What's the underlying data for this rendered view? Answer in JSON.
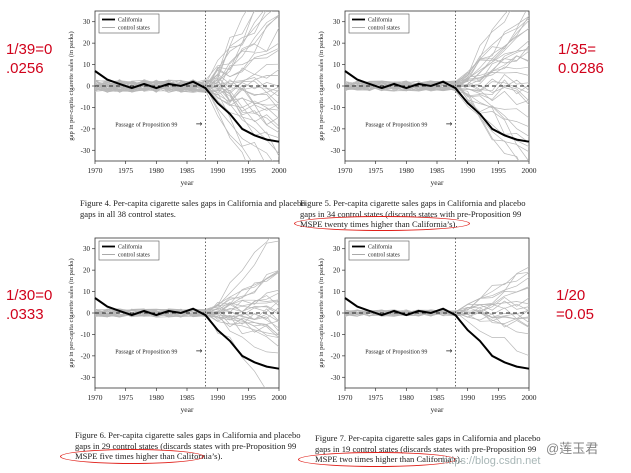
{
  "annotations": [
    {
      "line1": "1/39=0",
      "line2": ".0256"
    },
    {
      "line1": "1/35=",
      "line2": "0.0286"
    },
    {
      "line1": "1/30=0",
      "line2": ".0333"
    },
    {
      "line1": "1/20",
      "line2": "=0.05"
    }
  ],
  "captions": [
    {
      "line1": "Figure 4.  Per-capita cigarette sales gaps in California and placebo",
      "line2": "gaps in all 38 control states.",
      "line3": ""
    },
    {
      "line1": "Figure 5.  Per-capita cigarette sales gaps in California and placebo",
      "line2": "gaps in 34 control states (discards states with pre-Proposition 99",
      "line3": "MSPE twenty times higher than California’s)."
    },
    {
      "line1": "Figure 6.  Per-capita cigarette sales gaps in California and placebo",
      "line2": "gaps in 29 control states (discards states with pre-Proposition 99",
      "line3": "MSPE five times higher than California’s)."
    },
    {
      "line1": "Figure 7.  Per-capita cigarette sales gaps in California and placebo",
      "line2": "gaps in 19 control states (discards states with pre-Proposition 99",
      "line3": "MSPE two times higher than California’s)."
    }
  ],
  "watermark": {
    "text": "https://blog.csdn.net",
    "name": "@莲玉君"
  },
  "chart_data": [
    {
      "type": "line",
      "figure": "Figure 4",
      "ylabel": "gap in per-capita cigarette sales (in packs)",
      "xlabel": "year",
      "xlim": [
        1970,
        2000
      ],
      "ylim": [
        -35,
        35
      ],
      "x_ticks": [
        "1970",
        "1975",
        "1980",
        "1985",
        "1990",
        "1995",
        "2000"
      ],
      "y_ticks": [
        "30",
        "20",
        "10",
        "0",
        "-10",
        "-20",
        "-30"
      ],
      "legend": [
        "California",
        "control states"
      ],
      "annotation": "Passage of Proposition 99",
      "arrow": "→",
      "treatment_year": 1988,
      "n_controls": 38,
      "spread": 1.0,
      "x": [
        1970,
        1972,
        1974,
        1976,
        1978,
        1980,
        1982,
        1984,
        1986,
        1988,
        1990,
        1992,
        1994,
        1996,
        1998,
        2000
      ],
      "california": [
        7,
        3,
        1,
        -1,
        1,
        -1,
        1,
        0,
        2,
        -1,
        -8,
        -13,
        -20,
        -23,
        -25,
        -26
      ]
    },
    {
      "type": "line",
      "figure": "Figure 5",
      "ylabel": "gap in per-capita cigarette sales (in packs)",
      "xlabel": "year",
      "xlim": [
        1970,
        2000
      ],
      "ylim": [
        -35,
        35
      ],
      "x_ticks": [
        "1970",
        "1975",
        "1980",
        "1985",
        "1990",
        "1995",
        "2000"
      ],
      "y_ticks": [
        "30",
        "20",
        "10",
        "0",
        "-10",
        "-20",
        "-30"
      ],
      "legend": [
        "California",
        "control states"
      ],
      "annotation": "Passage of Proposition 99",
      "arrow": "→",
      "treatment_year": 1988,
      "n_controls": 34,
      "spread": 0.8,
      "x": [
        1970,
        1972,
        1974,
        1976,
        1978,
        1980,
        1982,
        1984,
        1986,
        1988,
        1990,
        1992,
        1994,
        1996,
        1998,
        2000
      ],
      "california": [
        7,
        3,
        1,
        -1,
        1,
        -1,
        1,
        0,
        2,
        -1,
        -8,
        -13,
        -20,
        -23,
        -25,
        -26
      ]
    },
    {
      "type": "line",
      "figure": "Figure 6",
      "ylabel": "gap in per-capita cigarette sales (in packs)",
      "xlabel": "year",
      "xlim": [
        1970,
        2000
      ],
      "ylim": [
        -35,
        35
      ],
      "x_ticks": [
        "1970",
        "1975",
        "1980",
        "1985",
        "1990",
        "1995",
        "2000"
      ],
      "y_ticks": [
        "30",
        "20",
        "10",
        "0",
        "-10",
        "-20",
        "-30"
      ],
      "legend": [
        "California",
        "control states"
      ],
      "annotation": "Passage of Proposition 99",
      "arrow": "→",
      "treatment_year": 1988,
      "n_controls": 29,
      "spread": 0.65,
      "x": [
        1970,
        1972,
        1974,
        1976,
        1978,
        1980,
        1982,
        1984,
        1986,
        1988,
        1990,
        1992,
        1994,
        1996,
        1998,
        2000
      ],
      "california": [
        7,
        3,
        1,
        -1,
        1,
        -1,
        1,
        0,
        2,
        -1,
        -8,
        -13,
        -20,
        -23,
        -25,
        -26
      ]
    },
    {
      "type": "line",
      "figure": "Figure 7",
      "ylabel": "gap in per-capita cigarette sales (in packs)",
      "xlabel": "year",
      "xlim": [
        1970,
        2000
      ],
      "ylim": [
        -35,
        35
      ],
      "x_ticks": [
        "1970",
        "1975",
        "1980",
        "1985",
        "1990",
        "1995",
        "2000"
      ],
      "y_ticks": [
        "30",
        "20",
        "10",
        "0",
        "-10",
        "-20",
        "-30"
      ],
      "legend": [
        "California",
        "control states"
      ],
      "annotation": "Passage of Proposition 99",
      "arrow": "→",
      "treatment_year": 1988,
      "n_controls": 19,
      "spread": 0.55,
      "x": [
        1970,
        1972,
        1974,
        1976,
        1978,
        1980,
        1982,
        1984,
        1986,
        1988,
        1990,
        1992,
        1994,
        1996,
        1998,
        2000
      ],
      "california": [
        7,
        3,
        1,
        -1,
        1,
        -1,
        1,
        0,
        2,
        -1,
        -8,
        -13,
        -20,
        -23,
        -25,
        -26
      ]
    }
  ]
}
